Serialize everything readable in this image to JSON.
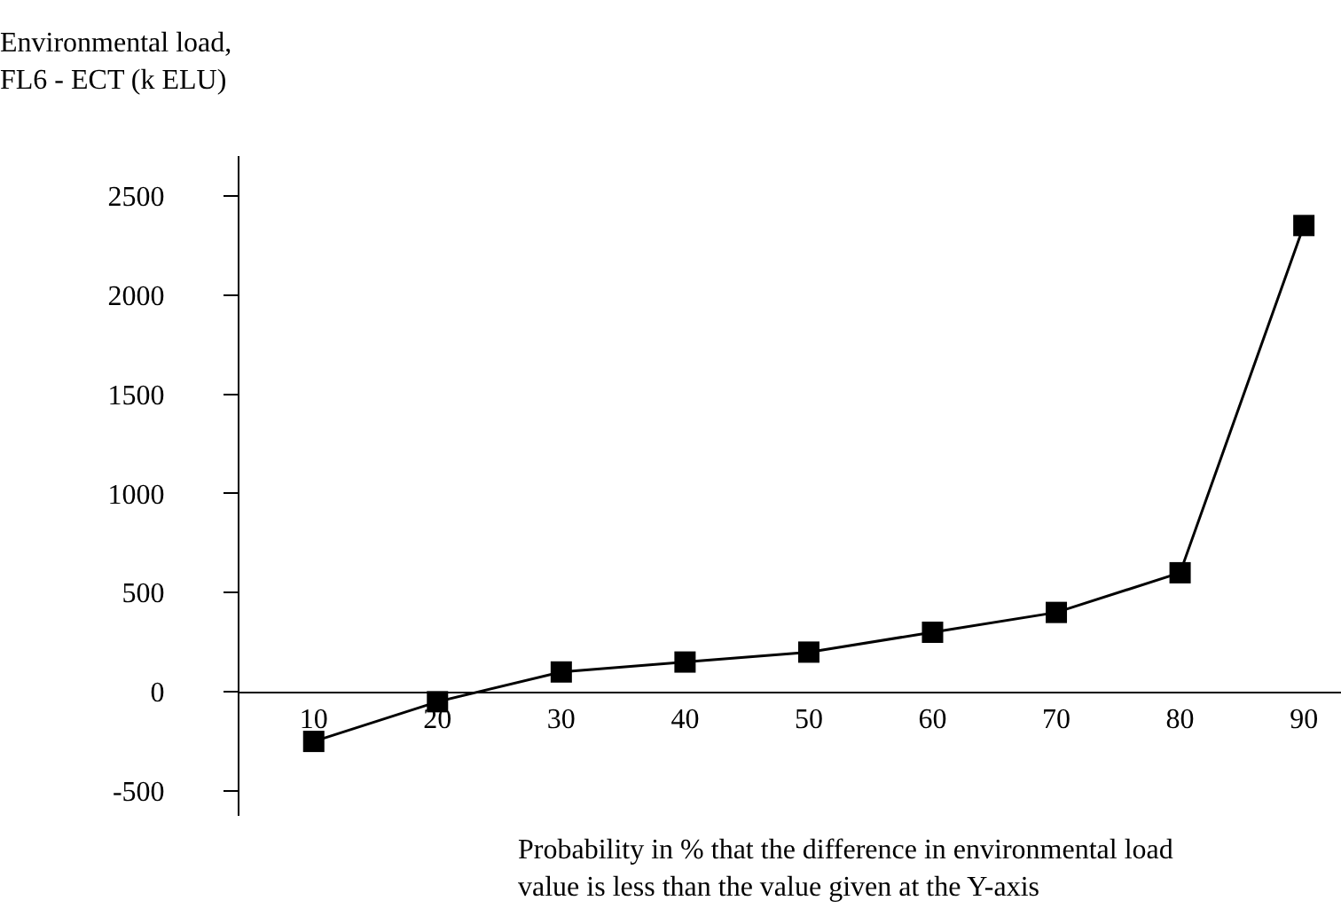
{
  "chart_data": {
    "type": "line",
    "ylabel": "Environmental load,\nFL6 - ECT (k ELU)",
    "xlabel": "Probability in % that the difference in environmental load\nvalue is less than the value given at the Y-axis",
    "x": [
      10,
      20,
      30,
      40,
      50,
      60,
      70,
      80,
      90
    ],
    "series": [
      {
        "color": "#000000",
        "values": [
          -250,
          -50,
          100,
          150,
          200,
          300,
          400,
          600,
          2350
        ]
      }
    ],
    "xlim": [
      4,
      93
    ],
    "xticks": [
      10,
      20,
      30,
      40,
      50,
      60,
      70,
      80,
      90
    ],
    "ylim": [
      -625,
      2700
    ],
    "yticks": [
      -500,
      0,
      500,
      1000,
      1500,
      2000,
      2500
    ],
    "marker": "square",
    "line_style": "solid"
  }
}
